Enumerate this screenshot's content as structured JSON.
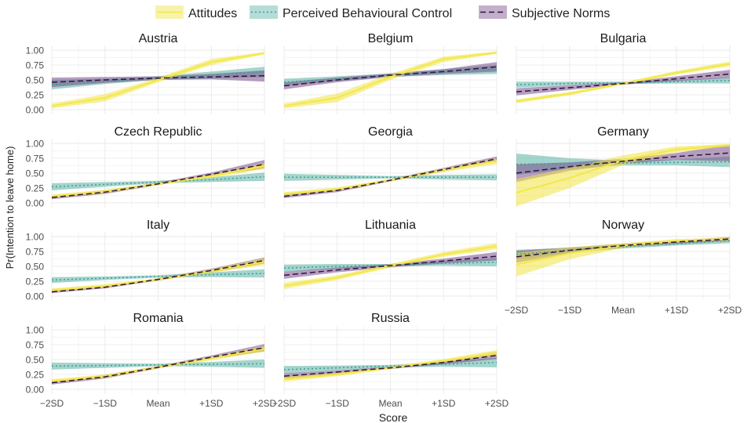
{
  "chart_data": {
    "type": "line",
    "facet_by": "country",
    "xlabel": "Score",
    "ylabel": "Pr(Intention to leave home)",
    "x_ticks": [
      "−2SD",
      "−1SD",
      "Mean",
      "+1SD",
      "+2SD"
    ],
    "y_ticks": [
      "0.00",
      "0.25",
      "0.50",
      "0.75",
      "1.00"
    ],
    "ylim": [
      -0.08,
      1.08
    ],
    "grid": true,
    "legend_position": "top",
    "legend": [
      {
        "key": "att",
        "label": "Attitudes",
        "color": "#f0e442",
        "line_color": "#f3e84a",
        "dash": "solid"
      },
      {
        "key": "pbc",
        "label": "Perceived Behavioural Control",
        "color": "#5ab2a4",
        "line_color": "#3e9e92",
        "dash": "dotted"
      },
      {
        "key": "sn",
        "label": "Subjective Norms",
        "color": "#7a4e8c",
        "line_color": "#2d1540",
        "dash": "dashed"
      }
    ],
    "panels": [
      {
        "title": "Austria",
        "att": {
          "mid": [
            0.06,
            0.2,
            0.5,
            0.8,
            0.95
          ],
          "lo": [
            0.02,
            0.14,
            0.46,
            0.75,
            0.93
          ],
          "hi": [
            0.1,
            0.26,
            0.54,
            0.85,
            0.97
          ]
        },
        "pbc": {
          "mid": [
            0.42,
            0.47,
            0.53,
            0.58,
            0.64
          ],
          "lo": [
            0.34,
            0.43,
            0.5,
            0.52,
            0.55
          ],
          "hi": [
            0.5,
            0.52,
            0.56,
            0.64,
            0.72
          ]
        },
        "sn": {
          "mid": [
            0.46,
            0.5,
            0.53,
            0.55,
            0.57
          ],
          "lo": [
            0.38,
            0.45,
            0.5,
            0.51,
            0.47
          ],
          "hi": [
            0.54,
            0.55,
            0.56,
            0.6,
            0.66
          ]
        }
      },
      {
        "title": "Belgium",
        "att": {
          "mid": [
            0.06,
            0.2,
            0.55,
            0.85,
            0.96
          ],
          "lo": [
            0.02,
            0.13,
            0.5,
            0.8,
            0.94
          ],
          "hi": [
            0.1,
            0.27,
            0.6,
            0.89,
            0.98
          ]
        },
        "pbc": {
          "mid": [
            0.46,
            0.52,
            0.58,
            0.63,
            0.68
          ],
          "lo": [
            0.4,
            0.48,
            0.55,
            0.58,
            0.6
          ],
          "hi": [
            0.52,
            0.56,
            0.61,
            0.68,
            0.75
          ]
        },
        "sn": {
          "mid": [
            0.4,
            0.5,
            0.58,
            0.64,
            0.72
          ],
          "lo": [
            0.34,
            0.46,
            0.55,
            0.6,
            0.64
          ],
          "hi": [
            0.46,
            0.54,
            0.61,
            0.68,
            0.8
          ]
        }
      },
      {
        "title": "Bulgaria",
        "att": {
          "mid": [
            0.14,
            0.27,
            0.44,
            0.62,
            0.77
          ],
          "lo": [
            0.11,
            0.24,
            0.42,
            0.59,
            0.73
          ],
          "hi": [
            0.17,
            0.3,
            0.46,
            0.65,
            0.81
          ]
        },
        "pbc": {
          "mid": [
            0.42,
            0.44,
            0.45,
            0.47,
            0.49
          ],
          "lo": [
            0.37,
            0.41,
            0.43,
            0.44,
            0.44
          ],
          "hi": [
            0.47,
            0.47,
            0.47,
            0.5,
            0.54
          ]
        },
        "sn": {
          "mid": [
            0.3,
            0.37,
            0.44,
            0.52,
            0.6
          ],
          "lo": [
            0.24,
            0.33,
            0.42,
            0.48,
            0.53
          ],
          "hi": [
            0.36,
            0.41,
            0.46,
            0.56,
            0.67
          ]
        }
      },
      {
        "title": "Czech Republic",
        "att": {
          "mid": [
            0.11,
            0.19,
            0.32,
            0.45,
            0.62
          ],
          "lo": [
            0.08,
            0.16,
            0.3,
            0.42,
            0.57
          ],
          "hi": [
            0.14,
            0.22,
            0.34,
            0.48,
            0.67
          ]
        },
        "pbc": {
          "mid": [
            0.27,
            0.31,
            0.35,
            0.39,
            0.44
          ],
          "lo": [
            0.21,
            0.27,
            0.33,
            0.35,
            0.37
          ],
          "hi": [
            0.33,
            0.35,
            0.37,
            0.43,
            0.51
          ]
        },
        "sn": {
          "mid": [
            0.09,
            0.18,
            0.32,
            0.48,
            0.65
          ],
          "lo": [
            0.06,
            0.15,
            0.3,
            0.45,
            0.58
          ],
          "hi": [
            0.12,
            0.21,
            0.34,
            0.51,
            0.72
          ]
        }
      },
      {
        "title": "Georgia",
        "att": {
          "mid": [
            0.15,
            0.23,
            0.38,
            0.55,
            0.7
          ],
          "lo": [
            0.12,
            0.2,
            0.36,
            0.52,
            0.65
          ],
          "hi": [
            0.18,
            0.26,
            0.4,
            0.58,
            0.75
          ]
        },
        "pbc": {
          "mid": [
            0.43,
            0.43,
            0.43,
            0.43,
            0.43
          ],
          "lo": [
            0.37,
            0.39,
            0.41,
            0.39,
            0.38
          ],
          "hi": [
            0.49,
            0.47,
            0.45,
            0.47,
            0.48
          ]
        },
        "sn": {
          "mid": [
            0.11,
            0.21,
            0.38,
            0.56,
            0.74
          ],
          "lo": [
            0.08,
            0.18,
            0.36,
            0.53,
            0.7
          ],
          "hi": [
            0.14,
            0.24,
            0.4,
            0.59,
            0.78
          ]
        }
      },
      {
        "title": "Germany",
        "att": {
          "mid": [
            0.17,
            0.42,
            0.72,
            0.9,
            0.97
          ],
          "lo": [
            -0.06,
            0.25,
            0.64,
            0.85,
            0.95
          ],
          "hi": [
            0.4,
            0.59,
            0.8,
            0.95,
            0.99
          ]
        },
        "pbc": {
          "mid": [
            0.65,
            0.66,
            0.67,
            0.68,
            0.69
          ],
          "lo": [
            0.47,
            0.57,
            0.63,
            0.63,
            0.6
          ],
          "hi": [
            0.83,
            0.75,
            0.71,
            0.73,
            0.78
          ]
        },
        "sn": {
          "mid": [
            0.5,
            0.61,
            0.7,
            0.78,
            0.84
          ],
          "lo": [
            0.35,
            0.54,
            0.66,
            0.72,
            0.7
          ],
          "hi": [
            0.65,
            0.68,
            0.74,
            0.84,
            0.98
          ]
        }
      },
      {
        "title": "Italy",
        "att": {
          "mid": [
            0.1,
            0.17,
            0.28,
            0.42,
            0.58
          ],
          "lo": [
            0.07,
            0.14,
            0.26,
            0.39,
            0.52
          ],
          "hi": [
            0.13,
            0.2,
            0.3,
            0.45,
            0.64
          ]
        },
        "pbc": {
          "mid": [
            0.27,
            0.3,
            0.33,
            0.36,
            0.38
          ],
          "lo": [
            0.22,
            0.27,
            0.31,
            0.32,
            0.31
          ],
          "hi": [
            0.32,
            0.33,
            0.35,
            0.4,
            0.45
          ]
        },
        "sn": {
          "mid": [
            0.07,
            0.15,
            0.28,
            0.43,
            0.6
          ],
          "lo": [
            0.05,
            0.13,
            0.26,
            0.4,
            0.55
          ],
          "hi": [
            0.09,
            0.17,
            0.3,
            0.46,
            0.65
          ]
        }
      },
      {
        "title": "Lithuania",
        "att": {
          "mid": [
            0.17,
            0.31,
            0.51,
            0.7,
            0.84
          ],
          "lo": [
            0.12,
            0.27,
            0.48,
            0.66,
            0.79
          ],
          "hi": [
            0.22,
            0.35,
            0.54,
            0.74,
            0.89
          ]
        },
        "pbc": {
          "mid": [
            0.47,
            0.5,
            0.52,
            0.55,
            0.57
          ],
          "lo": [
            0.41,
            0.46,
            0.5,
            0.51,
            0.5
          ],
          "hi": [
            0.53,
            0.54,
            0.54,
            0.59,
            0.64
          ]
        },
        "sn": {
          "mid": [
            0.35,
            0.44,
            0.51,
            0.59,
            0.67
          ],
          "lo": [
            0.29,
            0.4,
            0.48,
            0.55,
            0.6
          ],
          "hi": [
            0.41,
            0.48,
            0.54,
            0.63,
            0.74
          ]
        }
      },
      {
        "title": "Norway",
        "att": {
          "mid": [
            0.53,
            0.72,
            0.85,
            0.93,
            0.96
          ],
          "lo": [
            0.33,
            0.62,
            0.81,
            0.9,
            0.94
          ],
          "hi": [
            0.73,
            0.82,
            0.89,
            0.96,
            0.98
          ]
        },
        "pbc": {
          "mid": [
            0.7,
            0.77,
            0.83,
            0.88,
            0.93
          ],
          "lo": [
            0.62,
            0.73,
            0.8,
            0.85,
            0.89
          ],
          "hi": [
            0.78,
            0.81,
            0.86,
            0.91,
            0.97
          ]
        },
        "sn": {
          "mid": [
            0.66,
            0.77,
            0.85,
            0.91,
            0.96
          ],
          "lo": [
            0.56,
            0.72,
            0.82,
            0.88,
            0.93
          ],
          "hi": [
            0.76,
            0.82,
            0.88,
            0.94,
            0.99
          ]
        }
      },
      {
        "title": "Romania",
        "att": {
          "mid": [
            0.14,
            0.22,
            0.37,
            0.52,
            0.68
          ],
          "lo": [
            0.11,
            0.19,
            0.35,
            0.49,
            0.63
          ],
          "hi": [
            0.17,
            0.25,
            0.39,
            0.55,
            0.73
          ]
        },
        "pbc": {
          "mid": [
            0.39,
            0.4,
            0.41,
            0.42,
            0.43
          ],
          "lo": [
            0.33,
            0.36,
            0.39,
            0.38,
            0.36
          ],
          "hi": [
            0.45,
            0.44,
            0.43,
            0.46,
            0.5
          ]
        },
        "sn": {
          "mid": [
            0.11,
            0.21,
            0.37,
            0.54,
            0.7
          ],
          "lo": [
            0.08,
            0.18,
            0.35,
            0.51,
            0.64
          ],
          "hi": [
            0.14,
            0.24,
            0.39,
            0.57,
            0.76
          ]
        }
      },
      {
        "title": "Russia",
        "att": {
          "mid": [
            0.17,
            0.25,
            0.36,
            0.48,
            0.61
          ],
          "lo": [
            0.13,
            0.22,
            0.34,
            0.45,
            0.56
          ],
          "hi": [
            0.21,
            0.28,
            0.38,
            0.51,
            0.66
          ]
        },
        "pbc": {
          "mid": [
            0.33,
            0.36,
            0.39,
            0.42,
            0.45
          ],
          "lo": [
            0.27,
            0.32,
            0.37,
            0.38,
            0.37
          ],
          "hi": [
            0.39,
            0.4,
            0.41,
            0.46,
            0.53
          ]
        },
        "sn": {
          "mid": [
            0.22,
            0.29,
            0.36,
            0.45,
            0.57
          ],
          "lo": [
            0.17,
            0.26,
            0.34,
            0.42,
            0.51
          ],
          "hi": [
            0.27,
            0.32,
            0.38,
            0.48,
            0.63
          ]
        }
      }
    ]
  }
}
